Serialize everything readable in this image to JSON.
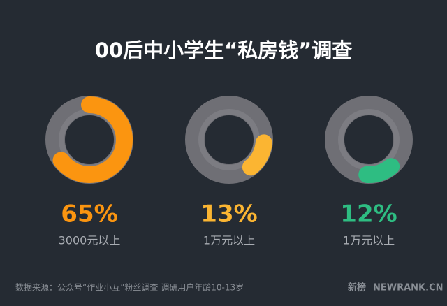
{
  "chart_data": {
    "type": "donut",
    "title": "00后中小学生“私房钱”调查",
    "categories": [
      "3000元以上",
      "1万元以上",
      "1万元以上"
    ],
    "values": [
      65,
      13,
      12
    ],
    "value_labels": [
      "65%",
      "13%",
      "12%"
    ],
    "colors": [
      "#fb9510",
      "#fbb532",
      "#2ebd82"
    ],
    "max": 100
  },
  "footer": {
    "source": "数据来源：公众号“作业小互”粉丝调查   调研用户年龄10-13岁",
    "brand": "新榜",
    "site": "NEWRANK.CN"
  }
}
